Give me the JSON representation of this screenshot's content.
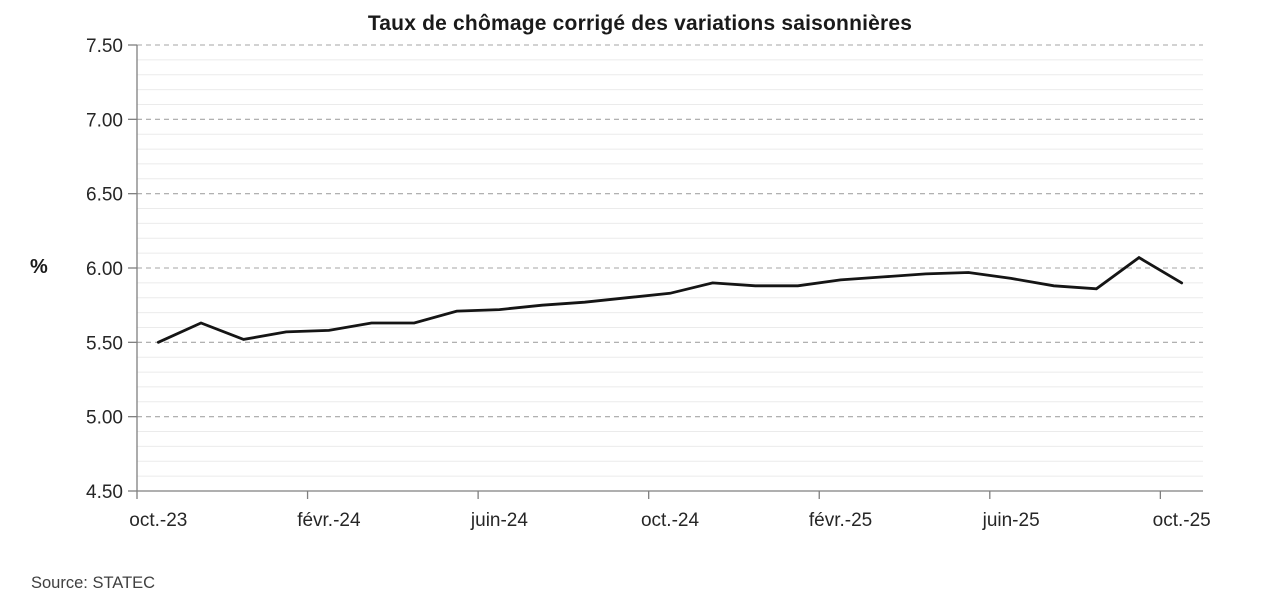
{
  "chart_data": {
    "type": "line",
    "title": "Taux de chômage corrigé des variations saisonnières",
    "ylabel": "%",
    "source": "Source: STATEC",
    "x": [
      "oct.-23",
      "nov.-23",
      "déc.-23",
      "janv.-24",
      "févr.-24",
      "mars-24",
      "avr.-24",
      "mai-24",
      "juin-24",
      "juil.-24",
      "août-24",
      "sept.-24",
      "oct.-24",
      "nov.-24",
      "déc.-24",
      "janv.-25",
      "févr.-25",
      "mars-25",
      "avr.-25",
      "mai-25",
      "juin-25",
      "juil.-25",
      "août-25",
      "sept.-25",
      "oct.-25"
    ],
    "series": [
      {
        "name": "Taux de chômage corrigé des variations saisonnières",
        "values": [
          5.5,
          5.63,
          5.52,
          5.57,
          5.58,
          5.63,
          5.63,
          5.71,
          5.72,
          5.75,
          5.77,
          5.8,
          5.83,
          5.9,
          5.88,
          5.88,
          5.92,
          5.94,
          5.96,
          5.97,
          5.93,
          5.88,
          5.86,
          6.07,
          5.9
        ]
      }
    ],
    "x_tick_labels": [
      "oct.-23",
      "févr.-24",
      "juin-24",
      "oct.-24",
      "févr.-25",
      "juin-25",
      "oct.-25"
    ],
    "x_tick_every": 4,
    "y_tick_labels": [
      "4.50",
      "5.00",
      "5.50",
      "6.00",
      "6.50",
      "7.00",
      "7.50"
    ],
    "ylim": [
      4.5,
      7.5
    ],
    "y_major_step": 0.5,
    "y_minor_step": 0.1,
    "legend_position": "none",
    "grid": "major-dashed-with-minor-solid",
    "colors": {
      "line": "#151515",
      "major_grid": "#a6a6a6",
      "minor_grid": "#ebebeb",
      "axis": "#7f7f7f",
      "tick_text": "#262626",
      "title_text": "#1a1a1a",
      "source_text": "#404040",
      "background": "#ffffff"
    }
  }
}
